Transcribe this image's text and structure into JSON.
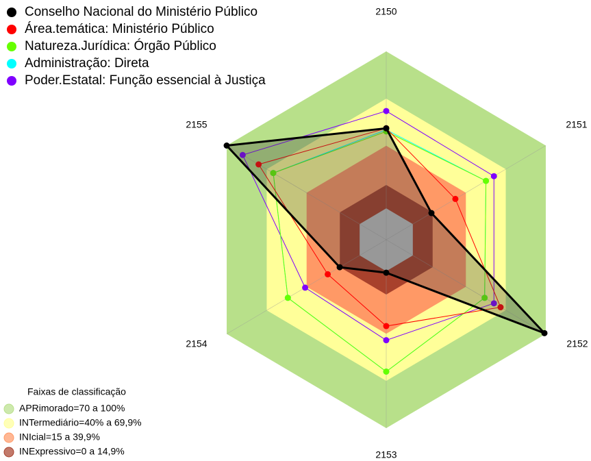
{
  "chart_data": {
    "type": "radar",
    "categories": [
      "2150",
      "2151",
      "2152",
      "2153",
      "2154",
      "2155"
    ],
    "rlim": [
      -20,
      100
    ],
    "series": [
      {
        "name": "Conselho Nacional do Ministério Público",
        "color": "#000000",
        "values": [
          51,
          14,
          99,
          1,
          15,
          100
        ]
      },
      {
        "name": "Área.temática: Ministério Público",
        "color": "#ff0000",
        "values": [
          51,
          32,
          66,
          35,
          24,
          76
        ]
      },
      {
        "name": "Natureza.Jurídica: Órgão Público",
        "color": "#66ff00",
        "values": [
          49,
          55,
          54,
          64,
          54,
          65
        ]
      },
      {
        "name": "Administração: Direta",
        "color": "#00ffff",
        "values": [
          50,
          55,
          54,
          64,
          54,
          65
        ]
      },
      {
        "name": "Poder.Estatal: Função essencial à Justiça",
        "color": "#7f00ff",
        "values": [
          62,
          61,
          61,
          44,
          41,
          88
        ]
      }
    ],
    "bands_title": "Faixas de classificação",
    "bands": [
      {
        "label": "APRimorado=70 a 100%",
        "color": "#b8e08a",
        "range": [
          70,
          100
        ]
      },
      {
        "label": "INTermediário=40% a 69,9%",
        "color": "#ffff99",
        "range": [
          40,
          69.9
        ]
      },
      {
        "label": "INIcial=15 a 39,9%",
        "color": "#ff9966",
        "range": [
          15,
          39.9
        ]
      },
      {
        "label": "INExpressivo=0 a 14,9%",
        "color": "#a8412c",
        "range": [
          0,
          14.9
        ]
      }
    ]
  }
}
